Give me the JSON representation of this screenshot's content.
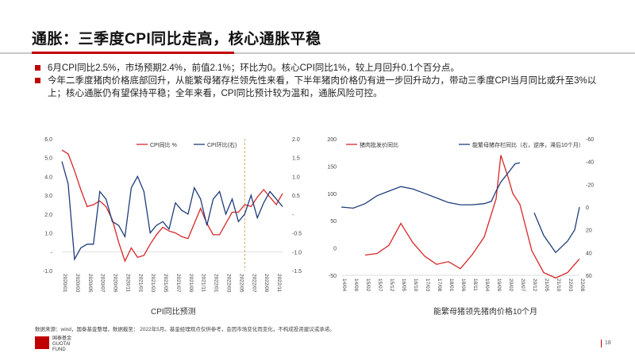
{
  "header": {
    "title": "通胀：三季度CPI同比走高，核心通胀平稳"
  },
  "bullets": [
    "6月CPI同比2.5%，市场预期2.4%，前值2.1%；环比为0。核心CPI同比1%，较上月回升0.1个百分点。",
    "今年二季度猪肉价格底部回升，从能繁母猪存栏领先性来看，下半年猪肉价格仍有进一步回升动力，带动三季度CPI当月同比或升至3%以上；核心通胀仍有望保持平稳；全年来看，CPI同比预计较为温和，通胀风险可控。"
  ],
  "colors": {
    "accent": "#c00000",
    "red_series": "#d62728",
    "blue_series": "#1f3d7a"
  },
  "chart_data": [
    {
      "type": "line",
      "caption": "CPI同比预测",
      "x": [
        "2020/01",
        "2020/02",
        "2020/03",
        "2020/04",
        "2020/05",
        "2020/06",
        "2020/07",
        "2020/08",
        "2020/09",
        "2020/10",
        "2020/11",
        "2020/12",
        "2021/01",
        "2021/02",
        "2021/03",
        "2021/04",
        "2021/05",
        "2021/06",
        "2021/07",
        "2021/08",
        "2021/09",
        "2021/10",
        "2021/11",
        "2021/12",
        "2022/01",
        "2022/02",
        "2022/03",
        "2022/04",
        "2022/05",
        "2022/06",
        "2022/07",
        "2022/08",
        "2022/09",
        "2022/10",
        "2022/11",
        "2022/12"
      ],
      "x_tick_labels": [
        "2020/01",
        "2020/03",
        "2020/05",
        "2020/07",
        "2020/09",
        "2020/11",
        "2021/01",
        "2021/03",
        "2021/05",
        "2021/07",
        "2021/09",
        "2021/11",
        "2022/01",
        "2022/03",
        "2022/05",
        "2022/07",
        "2022/09",
        "2022/11"
      ],
      "series": [
        {
          "name": "CPI同比 %",
          "axis": "left",
          "color": "#d62728",
          "values": [
            5.4,
            5.2,
            4.3,
            3.3,
            2.4,
            2.5,
            2.7,
            2.4,
            1.7,
            0.5,
            -0.5,
            0.2,
            -0.3,
            -0.2,
            0.4,
            0.9,
            1.3,
            1.1,
            1.0,
            0.8,
            0.7,
            1.5,
            2.3,
            1.5,
            0.9,
            0.9,
            1.5,
            2.1,
            2.1,
            2.5,
            2.4,
            2.9,
            3.3,
            2.9,
            2.5,
            3.1
          ]
        },
        {
          "name": "CPI环比(右)",
          "axis": "right",
          "color": "#1f3d7a",
          "values": [
            1.4,
            0.8,
            -1.2,
            -0.9,
            -0.8,
            -0.8,
            0.6,
            0.4,
            -0.2,
            -0.3,
            -0.6,
            0.7,
            1.0,
            0.6,
            -0.5,
            -0.3,
            -0.2,
            -0.4,
            0.3,
            0.1,
            0.0,
            0.7,
            0.4,
            -0.3,
            0.4,
            0.6,
            0.0,
            0.4,
            -0.2,
            0.0,
            0.5,
            -0.1,
            0.3,
            0.6,
            0.4,
            0.2
          ]
        }
      ],
      "ylim": [
        -1.0,
        6.0
      ],
      "y_ticks": [
        -1.0,
        0.0,
        1.0,
        2.0,
        3.0,
        4.0,
        5.0,
        6.0
      ],
      "y_tick_labels": [
        "-1.0",
        "-",
        "1.0",
        "2.0",
        "3.0",
        "4.0",
        "5.0",
        "6.0"
      ],
      "y2lim": [
        -1.5,
        2.0
      ],
      "y2_ticks": [
        -1.5,
        -1.0,
        -0.5,
        0.0,
        0.5,
        1.0,
        1.5,
        2.0
      ],
      "y2_tick_labels": [
        "-1.5",
        "-1.0",
        "-0.5",
        "-",
        "0.5",
        "1.0",
        "1.5",
        "2.0"
      ],
      "forecast_start": "2022/06",
      "legend": "top-center",
      "grid": false
    },
    {
      "type": "line",
      "caption": "能繁母猪领先猪肉价格10个月",
      "x": [
        "2014/04",
        "2014/10",
        "2015/04",
        "2015/10",
        "2016/04",
        "2016/10",
        "2017/04",
        "2017/10",
        "2018/04",
        "2018/10",
        "2019/04",
        "2019/07",
        "2019/10",
        "2019/11",
        "2020/01",
        "2020/04",
        "2020/07",
        "2020/10",
        "2021/01",
        "2021/04",
        "2021/07",
        "2021/10",
        "2022/01",
        "2022/04",
        "2022/06",
        "2022/08"
      ],
      "x_tick_labels": [
        "14/04",
        "14/09",
        "15/02",
        "15/07",
        "15/12",
        "16/05",
        "16/10",
        "17/03",
        "17/08",
        "18/01",
        "18/06",
        "18/11",
        "19/04",
        "19/09",
        "20/02",
        "20/07",
        "20/12",
        "21/05",
        "21/10",
        "22/03",
        "22/08"
      ],
      "series": [
        {
          "name": "猪肉批发价同比",
          "axis": "left",
          "color": "#d62728",
          "points": [
            [
              "15/02",
              -13
            ],
            [
              "15/07",
              -10
            ],
            [
              "15/12",
              5
            ],
            [
              "16/05",
              45
            ],
            [
              "16/10",
              10
            ],
            [
              "17/03",
              -15
            ],
            [
              "17/08",
              -30
            ],
            [
              "18/01",
              -25
            ],
            [
              "18/06",
              -38
            ],
            [
              "18/11",
              -12
            ],
            [
              "19/04",
              20
            ],
            [
              "19/09",
              90
            ],
            [
              "19/11",
              170
            ],
            [
              "20/02",
              130
            ],
            [
              "20/04",
              100
            ],
            [
              "20/07",
              80
            ],
            [
              "20/12",
              -5
            ],
            [
              "21/05",
              -45
            ],
            [
              "21/10",
              -55
            ],
            [
              "22/03",
              -45
            ],
            [
              "22/08",
              -20
            ]
          ]
        },
        {
          "name": "能繁母猪存栏同比（右，逆序，滞后10个月）",
          "axis": "right",
          "color": "#1f3d7a",
          "points": [
            [
              "14/04",
              0
            ],
            [
              "14/09",
              1
            ],
            [
              "15/02",
              -3
            ],
            [
              "15/07",
              -10
            ],
            [
              "15/12",
              -14
            ],
            [
              "16/05",
              -18
            ],
            [
              "16/10",
              -16
            ],
            [
              "17/03",
              -12
            ],
            [
              "17/08",
              -8
            ],
            [
              "18/01",
              -4
            ],
            [
              "18/06",
              -2
            ],
            [
              "18/11",
              -2
            ],
            [
              "19/04",
              -3
            ],
            [
              "19/07",
              -5
            ],
            [
              "19/09",
              -14
            ],
            [
              "19/11",
              -22
            ],
            [
              "20/02",
              -30
            ],
            [
              "20/05",
              -38
            ],
            [
              "20/07",
              -39
            ],
            [
              "20/10",
              null
            ],
            [
              "21/01",
              5
            ],
            [
              "21/05",
              25
            ],
            [
              "21/10",
              40
            ],
            [
              "22/03",
              30
            ],
            [
              "22/06",
              20
            ],
            [
              "22/08",
              0
            ]
          ]
        }
      ],
      "ylim": [
        -50,
        200
      ],
      "y_ticks": [
        -50,
        0,
        50,
        100,
        150,
        200
      ],
      "y2lim": [
        60,
        -60
      ],
      "y2_ticks": [
        60,
        40,
        20,
        0,
        -20,
        -40,
        -60
      ],
      "legend": "top-left",
      "grid": false
    }
  ],
  "footer": {
    "source": "数据来源：wind，国泰基金整理，数据截至： 2022年5月。基金经理观点仅供参考，会因市场变化而变化，不构成投资建议或承诺。",
    "logo_text": "国泰基金 GUOTAI FUND",
    "page": "18"
  }
}
